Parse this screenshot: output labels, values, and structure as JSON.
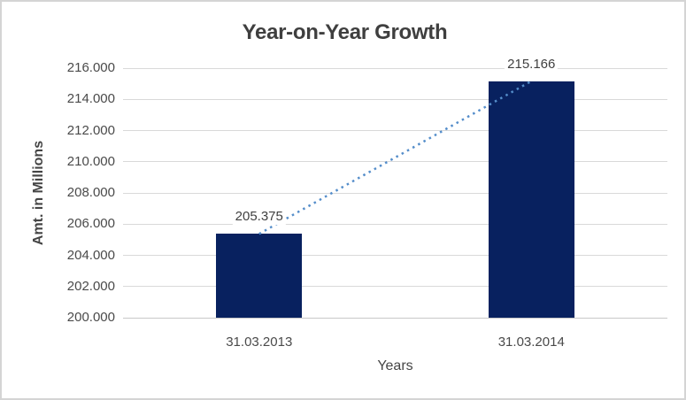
{
  "window": {
    "background": "#ffffff",
    "border_color": "#d4d4d4"
  },
  "chart_data": {
    "type": "bar",
    "title": "Year-on-Year Growth",
    "xlabel": "Years",
    "ylabel": "Amt. in Millions",
    "categories": [
      "31.03.2013",
      "31.03.2014"
    ],
    "values": [
      205.375,
      215.166
    ],
    "value_labels": [
      "205.375",
      "215.166"
    ],
    "ylim": [
      200,
      216
    ],
    "ytick_step": 2,
    "ytick_labels": [
      "200.000",
      "202.000",
      "204.000",
      "206.000",
      "208.000",
      "210.000",
      "212.000",
      "214.000",
      "216.000"
    ],
    "grid": true,
    "legend": "none",
    "bar_color": "#08215f",
    "gridline_color": "#d9d9d9",
    "axis_line_color": "#c8c8c8",
    "title_color": "#3f3f3f",
    "text_color": "#4a4a4a",
    "trendline": {
      "type": "linear",
      "style": "dotted",
      "color": "#548dca"
    }
  }
}
